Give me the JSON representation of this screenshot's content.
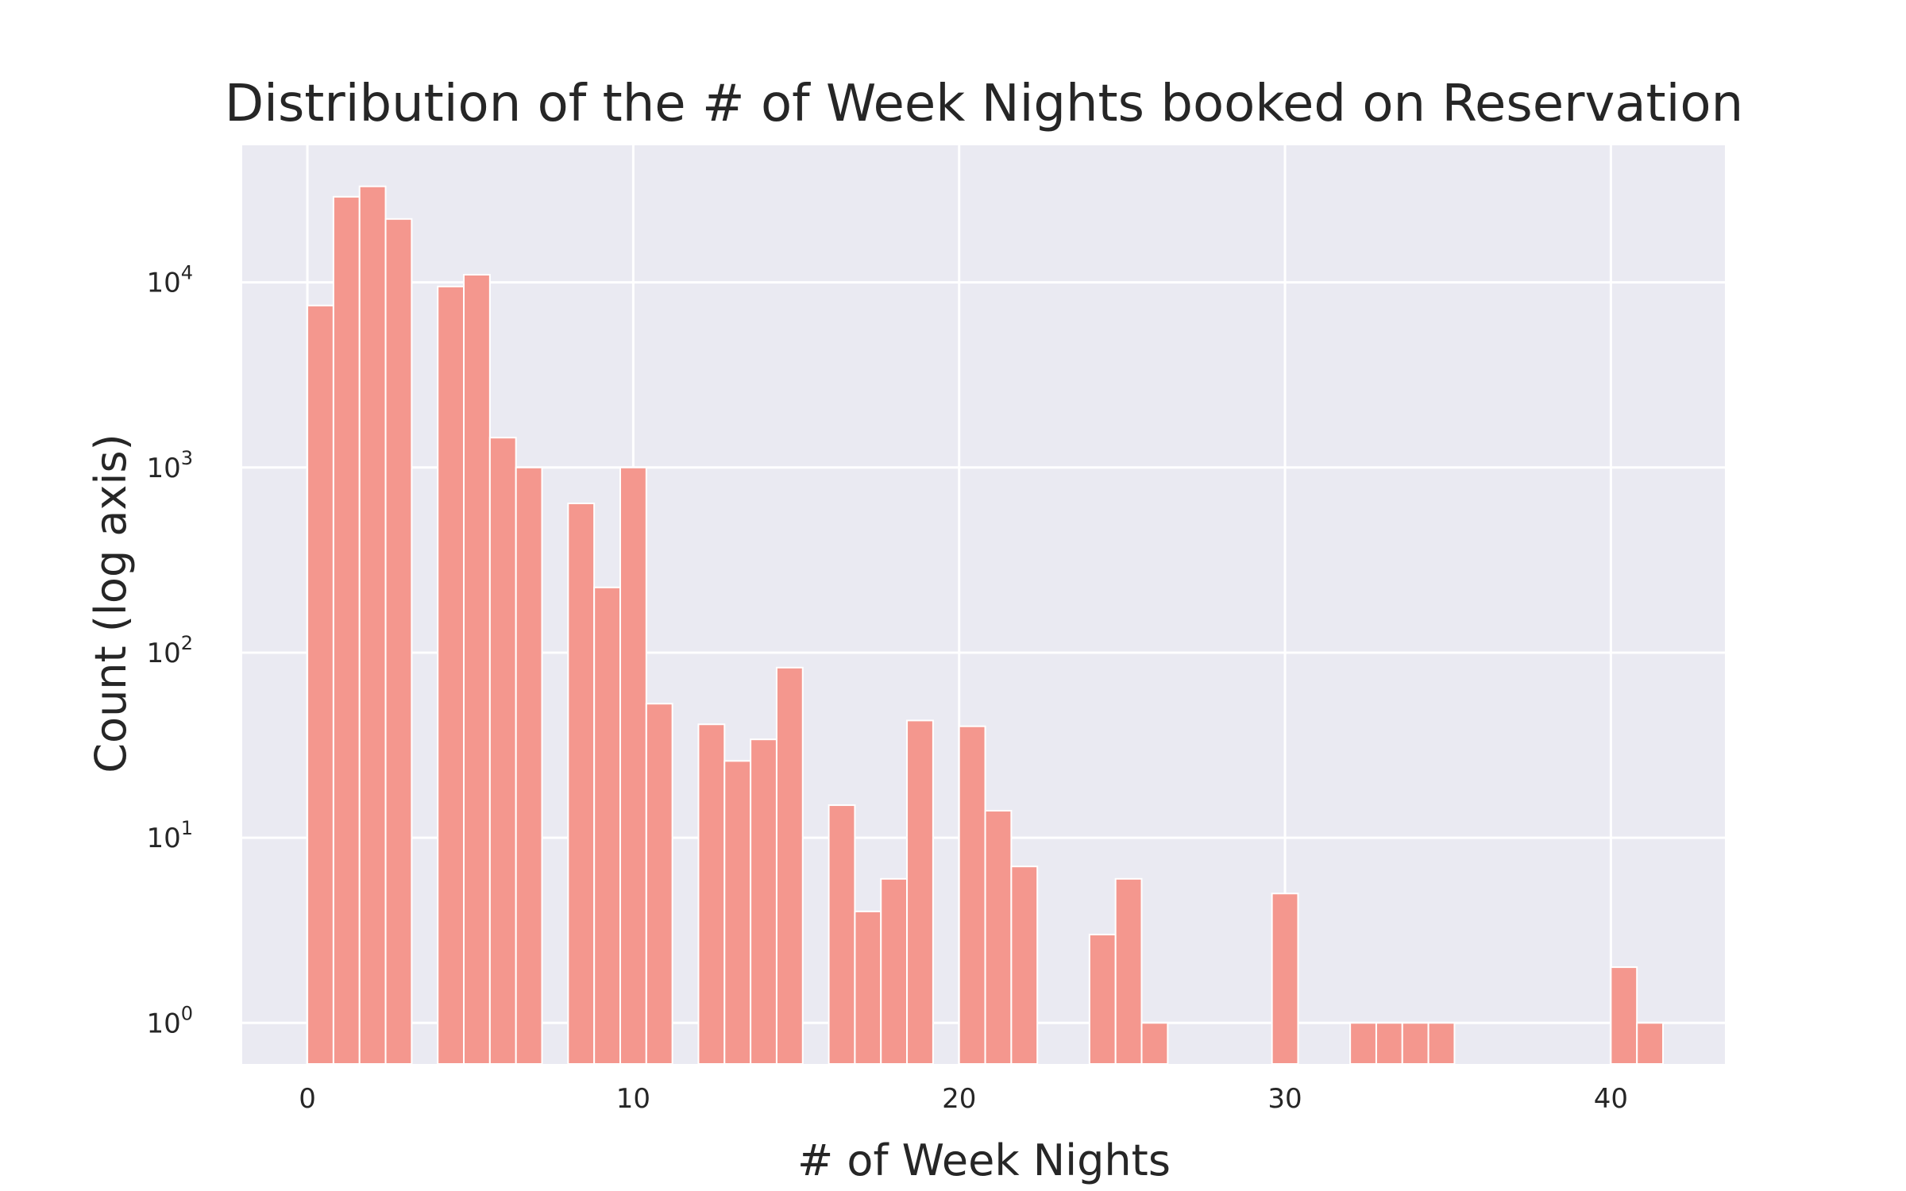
{
  "chart_data": {
    "type": "bar",
    "title": "Distribution of the # of Week Nights booked on Reservation",
    "xlabel": "# of Week Nights",
    "ylabel": "Count (log axis)",
    "y_scale": "log",
    "xlim": [
      -2,
      43.5
    ],
    "ylim": [
      0.6,
      55000
    ],
    "x_ticks": [
      0,
      10,
      20,
      30,
      40
    ],
    "y_ticks": [
      {
        "base": "10",
        "exp": "0",
        "value": 1
      },
      {
        "base": "10",
        "exp": "1",
        "value": 10
      },
      {
        "base": "10",
        "exp": "2",
        "value": 100
      },
      {
        "base": "10",
        "exp": "3",
        "value": 1000
      },
      {
        "base": "10",
        "exp": "4",
        "value": 10000
      }
    ],
    "grid": true,
    "bin_width": 0.8,
    "bar_color": "#f4978e",
    "bar_edge_color": "#ffffff",
    "background_color": "#eaeaf2",
    "bins": [
      {
        "x": 0.0,
        "count": 7500
      },
      {
        "x": 0.8,
        "count": 29000
      },
      {
        "x": 1.6,
        "count": 33000
      },
      {
        "x": 2.4,
        "count": 22000
      },
      {
        "x": 4.0,
        "count": 9500
      },
      {
        "x": 4.8,
        "count": 11000
      },
      {
        "x": 5.6,
        "count": 1450
      },
      {
        "x": 6.4,
        "count": 1000
      },
      {
        "x": 8.0,
        "count": 640
      },
      {
        "x": 8.8,
        "count": 225
      },
      {
        "x": 9.6,
        "count": 1000
      },
      {
        "x": 10.4,
        "count": 53
      },
      {
        "x": 12.0,
        "count": 41
      },
      {
        "x": 12.8,
        "count": 26
      },
      {
        "x": 13.6,
        "count": 34
      },
      {
        "x": 14.4,
        "count": 83
      },
      {
        "x": 16.0,
        "count": 15
      },
      {
        "x": 16.8,
        "count": 4
      },
      {
        "x": 17.6,
        "count": 6
      },
      {
        "x": 18.4,
        "count": 43
      },
      {
        "x": 20.0,
        "count": 40
      },
      {
        "x": 20.8,
        "count": 14
      },
      {
        "x": 21.6,
        "count": 7
      },
      {
        "x": 24.0,
        "count": 3
      },
      {
        "x": 24.8,
        "count": 6
      },
      {
        "x": 25.6,
        "count": 1
      },
      {
        "x": 29.6,
        "count": 5
      },
      {
        "x": 32.0,
        "count": 1
      },
      {
        "x": 32.8,
        "count": 1
      },
      {
        "x": 33.6,
        "count": 1
      },
      {
        "x": 34.4,
        "count": 1
      },
      {
        "x": 40.0,
        "count": 2
      },
      {
        "x": 40.8,
        "count": 1
      }
    ]
  }
}
